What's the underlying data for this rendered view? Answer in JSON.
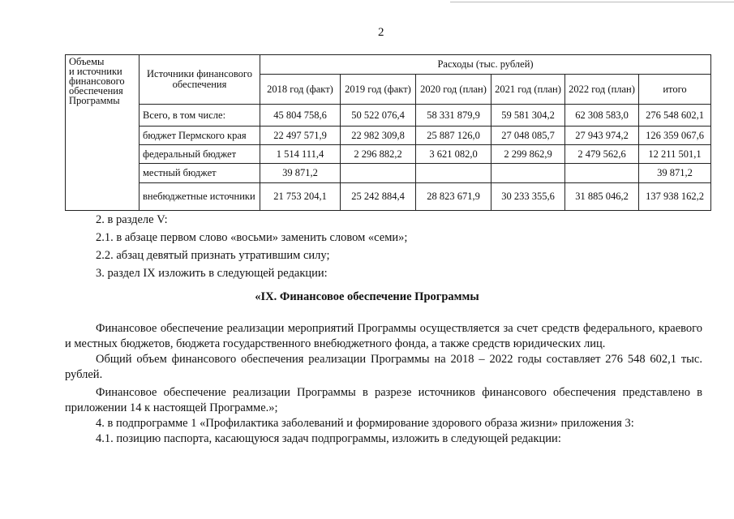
{
  "page_number": "2",
  "table": {
    "row_label": "Объемы\nи источники\nфинансового\nобеспечения\nПрограммы",
    "sources_header": "Источники финансового обеспечения",
    "expenses_header": "Расходы (тыс. рублей)",
    "columns": [
      "2018 год (факт)",
      "2019 год (факт)",
      "2020 год (план)",
      "2021 год (план)",
      "2022 год (план)",
      "итого"
    ],
    "rows": [
      {
        "source": "Всего, в том числе:",
        "values": [
          "45 804 758,6",
          "50 522 076,4",
          "58 331 879,9",
          "59 581 304,2",
          "62 308 583,0",
          "276 548 602,1"
        ]
      },
      {
        "source": "бюджет Пермского края",
        "values": [
          "22 497 571,9",
          "22 982 309,8",
          "25 887 126,0",
          "27 048 085,7",
          "27 943 974,2",
          "126 359 067,6"
        ]
      },
      {
        "source": "федеральный бюджет",
        "values": [
          "1 514 111,4",
          "2 296 882,2",
          "3 621 082,0",
          "2 299 862,9",
          "2 479 562,6",
          "12 211 501,1"
        ]
      },
      {
        "source": "местный бюджет",
        "values": [
          "39 871,2",
          "",
          "",
          "",
          "",
          "39 871,2"
        ]
      },
      {
        "source": "внебюджетные источники",
        "values": [
          "21 753 204,1",
          "25 242 884,4",
          "28 823 671,9",
          "30 233 355,6",
          "31 885 046,2",
          "137 938 162,2"
        ]
      }
    ]
  },
  "text": {
    "l1": "2. в разделе V:",
    "l2": "2.1. в абзаце первом слово «восьми» заменить словом «семи»;",
    "l3": "2.2. абзац девятый признать утратившим силу;",
    "l4": "3. раздел IX изложить в следующей редакции:",
    "heading": "«IX. Финансовое обеспечение Программы",
    "p1": "Финансовое обеспечение реализации мероприятий Программы осуществляется за счет средств федерального, краевого и местных бюджетов, бюджета государственного внебюджетного фонда, а также средств юридических лиц.",
    "p2": "Общий объем финансового обеспечения реализации Программы на 2018 – 2022 годы составляет 276 548 602,1 тыс. рублей.",
    "p3": "Финансовое обеспечение реализации Программы в разрезе источников финансового обеспечения представлено в приложении 14 к настоящей Программе.»;",
    "l5": "4. в подпрограмме 1 «Профилактика заболеваний и формирование здорового образа жизни» приложения 3:",
    "l6": "4.1. позицию паспорта, касающуюся задач подпрограммы, изложить в следующей редакции:"
  }
}
